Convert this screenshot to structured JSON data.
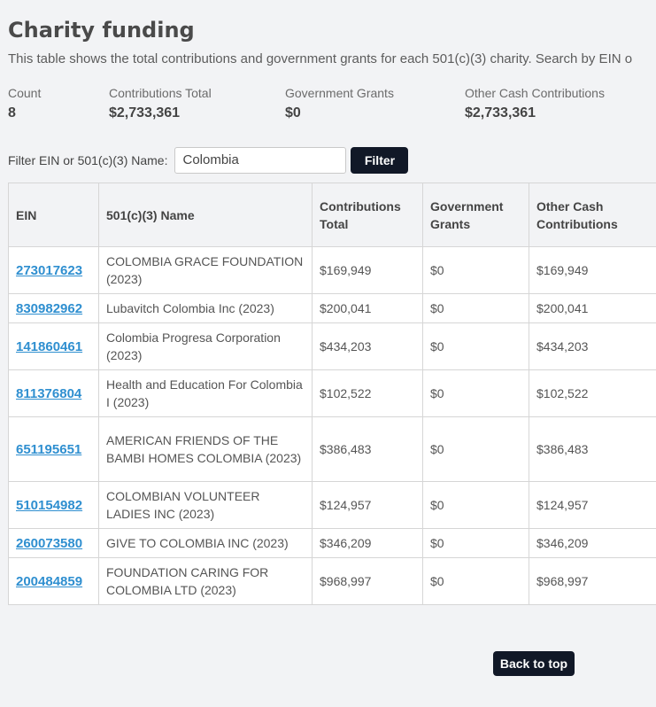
{
  "page": {
    "title": "Charity funding",
    "description": "This table shows the total contributions and government grants for each 501(c)(3) charity. Search by EIN o"
  },
  "stats": [
    {
      "label": "Count",
      "value": "8"
    },
    {
      "label": "Contributions Total",
      "value": "$2,733,361"
    },
    {
      "label": "Government Grants",
      "value": "$0"
    },
    {
      "label": "Other Cash Contributions",
      "value": "$2,733,361"
    }
  ],
  "filter": {
    "label": "Filter EIN or 501(c)(3) Name:",
    "value": "Colombia",
    "button": "Filter"
  },
  "table": {
    "headers": [
      "EIN",
      "501(c)(3) Name",
      "Contributions Total",
      "Government Grants",
      "Other Cash Contributions"
    ],
    "rows": [
      {
        "ein": "273017623",
        "name": "COLOMBIA GRACE FOUNDATION (2023)",
        "contrib": "$169,949",
        "grants": "$0",
        "other": "$169,949"
      },
      {
        "ein": "830982962",
        "name": "Lubavitch Colombia Inc (2023)",
        "contrib": "$200,041",
        "grants": "$0",
        "other": "$200,041"
      },
      {
        "ein": "141860461",
        "name": "Colombia Progresa Corporation (2023)",
        "contrib": "$434,203",
        "grants": "$0",
        "other": "$434,203"
      },
      {
        "ein": "811376804",
        "name": "Health and Education For Colombia I (2023)",
        "contrib": "$102,522",
        "grants": "$0",
        "other": "$102,522"
      },
      {
        "ein": "651195651",
        "name": "AMERICAN FRIENDS OF THE BAMBI HOMES COLOMBIA (2023)",
        "contrib": "$386,483",
        "grants": "$0",
        "other": "$386,483"
      },
      {
        "ein": "510154982",
        "name": "COLOMBIAN VOLUNTEER LADIES INC (2023)",
        "contrib": "$124,957",
        "grants": "$0",
        "other": "$124,957"
      },
      {
        "ein": "260073580",
        "name": "GIVE TO COLOMBIA INC (2023)",
        "contrib": "$346,209",
        "grants": "$0",
        "other": "$346,209"
      },
      {
        "ein": "200484859",
        "name": "FOUNDATION CARING FOR COLOMBIA LTD (2023)",
        "contrib": "$968,997",
        "grants": "$0",
        "other": "$968,997"
      }
    ]
  },
  "footer": {
    "back_to_top": "Back to top"
  }
}
